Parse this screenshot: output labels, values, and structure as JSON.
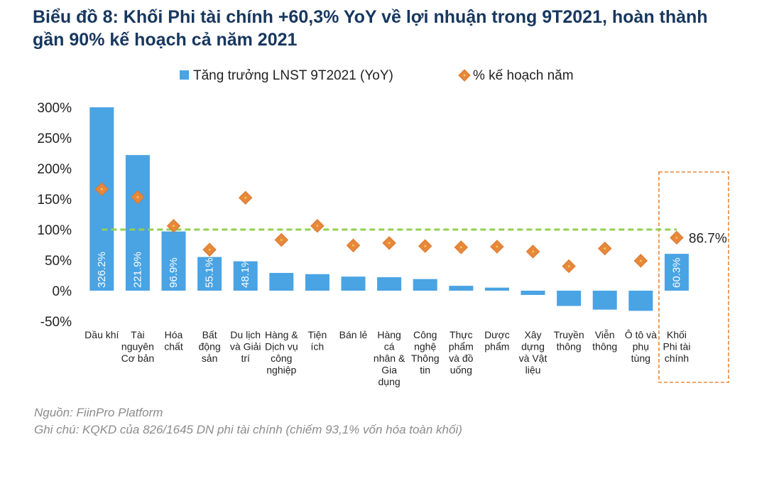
{
  "title": "Biểu đồ 8: Khối Phi tài chính +60,3% YoY về lợi nhuận trong 9T2021, hoàn thành gần 90% kế hoạch cả năm 2021",
  "source": "Nguồn: FiinPro Platform",
  "note": "Ghi chú: KQKD của 826/1645 DN phi tài chính (chiếm 93,1% vốn hóa toàn khối)",
  "chart_data": {
    "type": "bar",
    "title": "Biểu đồ 8: Khối Phi tài chính +60,3% YoY về lợi nhuận trong 9T2021, hoàn thành gần 90% kế hoạch cả năm 2021",
    "ylim": [
      -50,
      300
    ],
    "yticks": [
      -50,
      0,
      50,
      100,
      150,
      200,
      250,
      300
    ],
    "ytick_labels": [
      "-50%",
      "0%",
      "50%",
      "100%",
      "150%",
      "200%",
      "250%",
      "300%"
    ],
    "categories": [
      [
        "Dầu khí"
      ],
      [
        "Tài",
        "nguyên",
        "Cơ bản"
      ],
      [
        "Hóa",
        "chất"
      ],
      [
        "Bất",
        "động",
        "sản"
      ],
      [
        "Du lịch",
        "và Giải",
        "trí"
      ],
      [
        "Hàng &",
        "Dịch vụ",
        "công",
        "nghiệp"
      ],
      [
        "Tiện",
        "ích"
      ],
      [
        "Bán lẻ"
      ],
      [
        "Hàng",
        "cá",
        "nhân &",
        "Gia",
        "dụng"
      ],
      [
        "Công",
        "nghệ",
        "Thông",
        "tin"
      ],
      [
        "Thực",
        "phẩm",
        "và đồ",
        "uống"
      ],
      [
        "Dược",
        "phẩm"
      ],
      [
        "Xây",
        "dựng",
        "và Vật",
        "liệu"
      ],
      [
        "Truyền",
        "thông"
      ],
      [
        "Viễn",
        "thông"
      ],
      [
        "Ô tô và",
        "phụ",
        "tùng"
      ],
      [
        "Khối",
        "Phi tài",
        "chính"
      ]
    ],
    "series": [
      {
        "name": "Tăng trưởng LNST 9T2021 (YoY)",
        "type": "bar",
        "color": "#4aa3e3",
        "values": [
          326.2,
          221.9,
          96.9,
          55.1,
          48.1,
          29,
          27,
          23,
          22,
          19,
          8,
          5,
          -7,
          -25,
          -31,
          -33,
          60.3
        ],
        "data_labels": [
          "326.2%",
          "221.9%",
          "96.9%",
          "55.1%",
          "48.1%",
          null,
          null,
          null,
          null,
          null,
          null,
          null,
          null,
          null,
          null,
          null,
          "60.3%"
        ]
      },
      {
        "name": "% kế hoạch năm",
        "type": "scatter",
        "marker": "diamond",
        "color": "#e8883a",
        "values": [
          166,
          153,
          106,
          67,
          152,
          83,
          106,
          74,
          78,
          73,
          71,
          72,
          64,
          40,
          69,
          49,
          86.7
        ],
        "data_labels": [
          null,
          null,
          null,
          null,
          null,
          null,
          null,
          null,
          null,
          null,
          null,
          null,
          null,
          null,
          null,
          null,
          "86.7%"
        ]
      }
    ],
    "reference_line": {
      "value": 100,
      "style": "dashed",
      "color": "#92d050"
    },
    "highlight_category": 16,
    "highlight_color": "#e8883a",
    "legend": {
      "position": "top-center"
    }
  }
}
